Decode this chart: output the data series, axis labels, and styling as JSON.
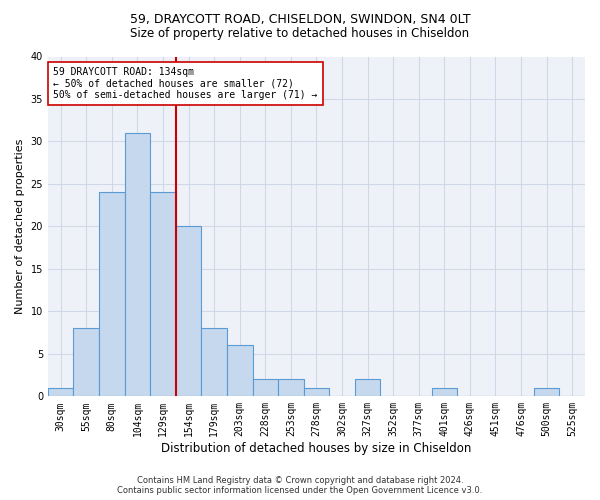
{
  "title1": "59, DRAYCOTT ROAD, CHISELDON, SWINDON, SN4 0LT",
  "title2": "Size of property relative to detached houses in Chiseldon",
  "xlabel": "Distribution of detached houses by size in Chiseldon",
  "ylabel": "Number of detached properties",
  "categories": [
    "30sqm",
    "55sqm",
    "80sqm",
    "104sqm",
    "129sqm",
    "154sqm",
    "179sqm",
    "203sqm",
    "228sqm",
    "253sqm",
    "278sqm",
    "302sqm",
    "327sqm",
    "352sqm",
    "377sqm",
    "401sqm",
    "426sqm",
    "451sqm",
    "476sqm",
    "500sqm",
    "525sqm"
  ],
  "values": [
    1,
    8,
    24,
    31,
    24,
    20,
    8,
    6,
    2,
    2,
    1,
    0,
    2,
    0,
    0,
    1,
    0,
    0,
    0,
    1,
    0
  ],
  "bar_color": "#c5d8ed",
  "bar_edge_color": "#5b9bd5",
  "vline_x_index": 4,
  "vline_color": "#cc0000",
  "annotation_text": "59 DRAYCOTT ROAD: 134sqm\n← 50% of detached houses are smaller (72)\n50% of semi-detached houses are larger (71) →",
  "annotation_box_color": "white",
  "annotation_box_edge": "#cc0000",
  "ylim": [
    0,
    40
  ],
  "yticks": [
    0,
    5,
    10,
    15,
    20,
    25,
    30,
    35,
    40
  ],
  "grid_color": "#d0d8e8",
  "bg_color": "#eef2f8",
  "footer1": "Contains HM Land Registry data © Crown copyright and database right 2024.",
  "footer2": "Contains public sector information licensed under the Open Government Licence v3.0.",
  "title1_fontsize": 9,
  "title2_fontsize": 8.5,
  "tick_fontsize": 7,
  "ylabel_fontsize": 8,
  "xlabel_fontsize": 8.5,
  "ann_fontsize": 7,
  "footer_fontsize": 6
}
